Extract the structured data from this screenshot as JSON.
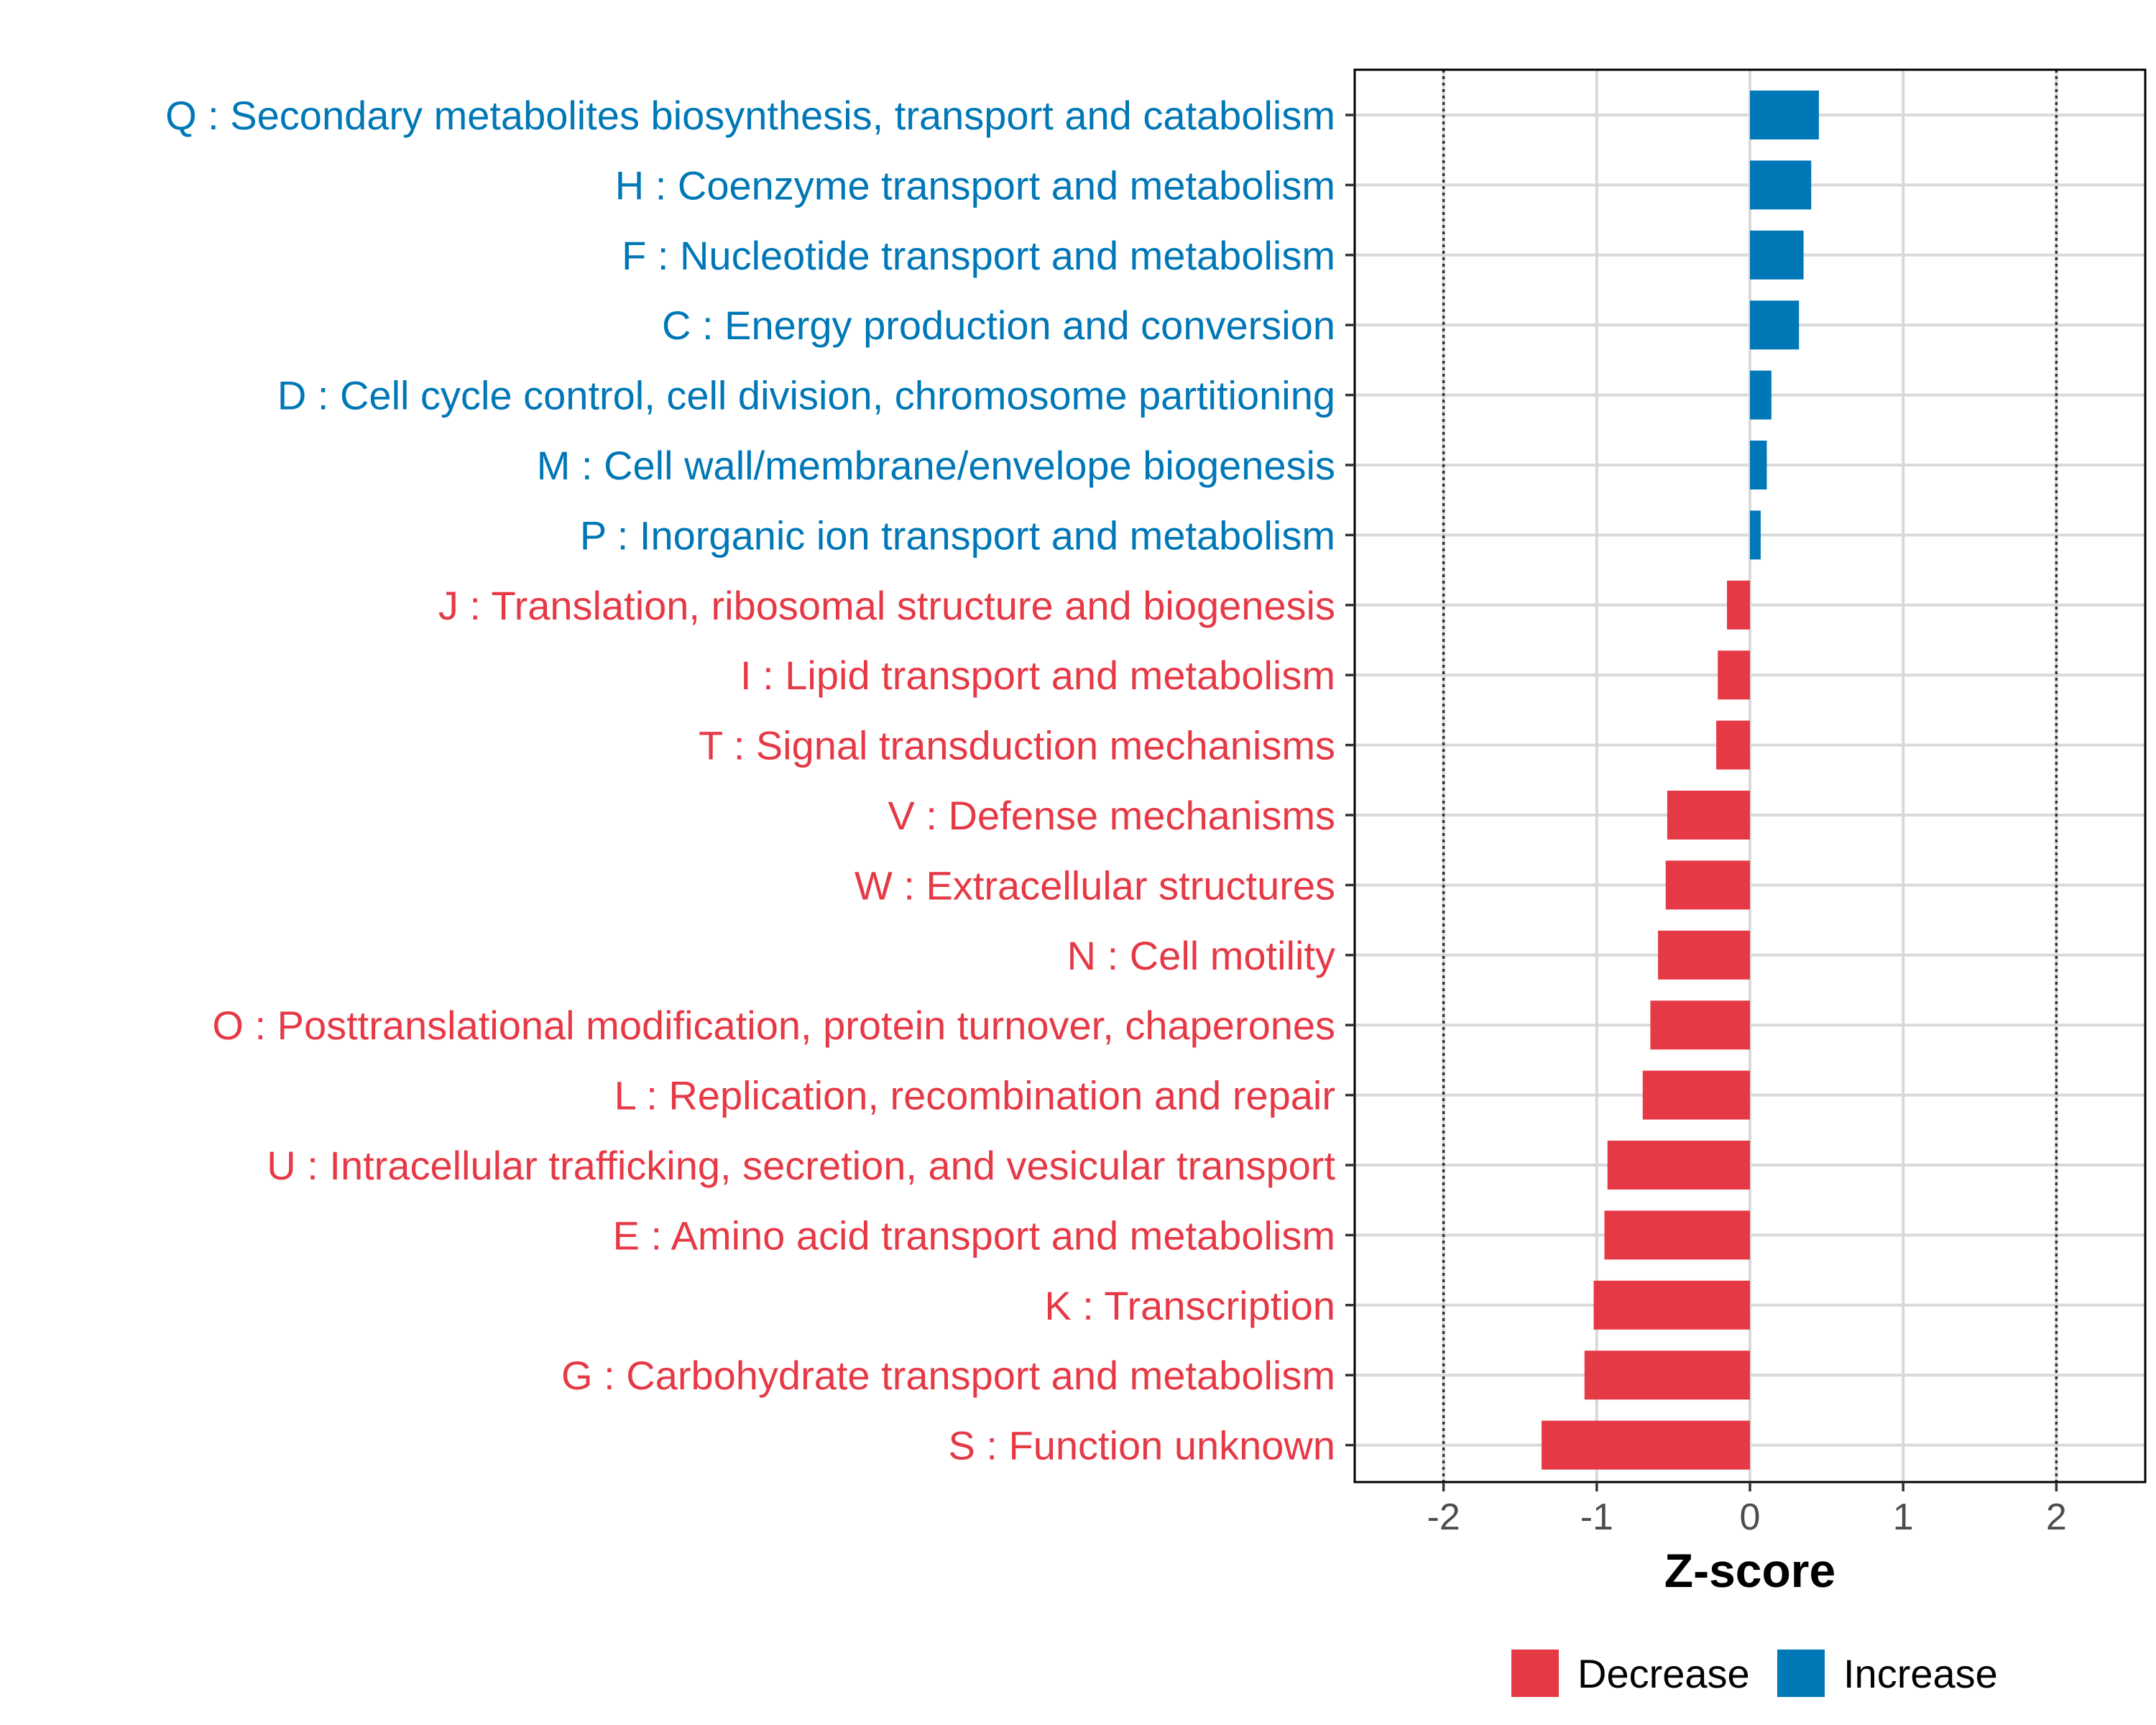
{
  "chart_data": {
    "type": "bar",
    "orientation": "horizontal",
    "xlabel": "Z-score",
    "xlim": [
      -2.58,
      2.58
    ],
    "xticks": [
      -2,
      -1,
      0,
      1,
      2
    ],
    "xtick_labels": [
      "-2",
      "-1",
      "0",
      "1",
      "2"
    ],
    "reference_lines": [
      -2,
      2
    ],
    "grid": true,
    "legend_position": "bottom",
    "colors": {
      "Decrease": "#e63946",
      "Increase": "#0077b6"
    },
    "legend": [
      {
        "label": "Decrease",
        "color": "#e63946"
      },
      {
        "label": "Increase",
        "color": "#0077b6"
      }
    ],
    "categories": [
      "Q : Secondary metabolites biosynthesis, transport and catabolism",
      "H : Coenzyme transport and metabolism",
      "F : Nucleotide transport and metabolism",
      "C : Energy production and conversion",
      "D : Cell cycle control, cell division, chromosome partitioning",
      "M : Cell wall/membrane/envelope biogenesis",
      "P : Inorganic ion transport and metabolism",
      "J : Translation, ribosomal structure and biogenesis",
      "I : Lipid transport and metabolism",
      "T : Signal transduction mechanisms",
      "V : Defense mechanisms",
      "W : Extracellular structures",
      "N : Cell motility",
      "O : Posttranslational modification, protein turnover, chaperones",
      "L : Replication, recombination and repair",
      "U : Intracellular trafficking, secretion, and vesicular transport",
      "E : Amino acid transport and metabolism",
      "K : Transcription",
      "G : Carbohydrate transport and metabolism",
      "S : Function unknown"
    ],
    "values": [
      0.45,
      0.4,
      0.35,
      0.32,
      0.14,
      0.11,
      0.07,
      -0.15,
      -0.21,
      -0.22,
      -0.54,
      -0.55,
      -0.6,
      -0.65,
      -0.7,
      -0.93,
      -0.95,
      -1.02,
      -1.08,
      -1.36
    ],
    "groups": [
      "Increase",
      "Increase",
      "Increase",
      "Increase",
      "Increase",
      "Increase",
      "Increase",
      "Decrease",
      "Decrease",
      "Decrease",
      "Decrease",
      "Decrease",
      "Decrease",
      "Decrease",
      "Decrease",
      "Decrease",
      "Decrease",
      "Decrease",
      "Decrease",
      "Decrease"
    ]
  }
}
